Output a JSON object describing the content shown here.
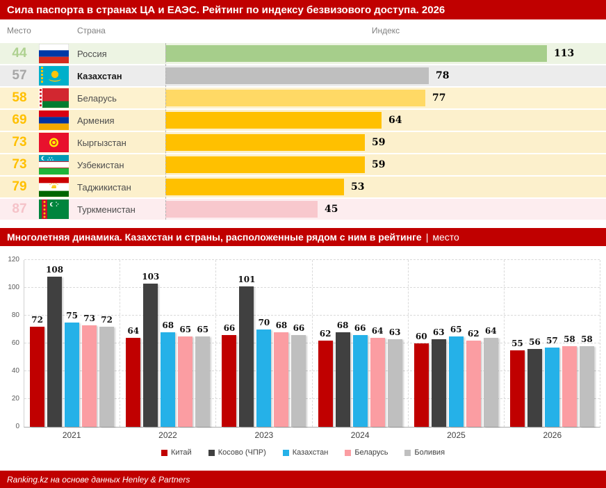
{
  "header": {
    "title": "Сила паспорта в странах ЦА и ЕАЭС. Рейтинг по индексу безвизового доступа. 2026"
  },
  "columns": {
    "rank": "Место",
    "country": "Страна",
    "index": "Индекс"
  },
  "ranking": {
    "max_value": 113,
    "rows": [
      {
        "rank": "44",
        "country": "Россия",
        "value": 113,
        "flag": "russia",
        "theme": "green",
        "bold": false
      },
      {
        "rank": "57",
        "country": "Казахстан",
        "value": 78,
        "flag": "kazakhstan",
        "theme": "gray",
        "bold": true
      },
      {
        "rank": "58",
        "country": "Беларусь",
        "value": 77,
        "flag": "belarus",
        "theme": "lightgold",
        "bold": false
      },
      {
        "rank": "69",
        "country": "Армения",
        "value": 64,
        "flag": "armenia",
        "theme": "gold",
        "bold": false
      },
      {
        "rank": "73",
        "country": "Кыргызстан",
        "value": 59,
        "flag": "kyrgyzstan",
        "theme": "gold",
        "bold": false
      },
      {
        "rank": "73",
        "country": "Узбекистан",
        "value": 59,
        "flag": "uzbekistan",
        "theme": "gold",
        "bold": false
      },
      {
        "rank": "79",
        "country": "Таджикистан",
        "value": 53,
        "flag": "tajikistan",
        "theme": "gold",
        "bold": false
      },
      {
        "rank": "87",
        "country": "Туркменистан",
        "value": 45,
        "flag": "turkmenistan",
        "theme": "pink",
        "bold": false
      }
    ],
    "theme_colors": {
      "green": {
        "rank": "#aed190",
        "bar": "#a6ce8b",
        "bg": "#edf4e3"
      },
      "gray": {
        "rank": "#a6a6a6",
        "bar": "#bfbfbf",
        "bg": "#ececec"
      },
      "lightgold": {
        "rank": "#ffc000",
        "bar": "#ffd965",
        "bg": "#fdf2cf"
      },
      "gold": {
        "rank": "#ffc000",
        "bar": "#ffc000",
        "bg": "#fcf0cc"
      },
      "pink": {
        "rank": "#f5c2c8",
        "bar": "#f8c8cd",
        "bg": "#fdedef"
      }
    }
  },
  "subtitle": {
    "bold": "Многолетняя динамика. Казахстан и страны, расположенные рядом с ним в рейтинге",
    "separator": "|",
    "light": "место"
  },
  "chart_data": [
    {
      "type": "bar",
      "orientation": "horizontal",
      "title": "Сила паспорта в странах ЦА и ЕАЭС. Рейтинг по индексу безвизового доступа. 2026",
      "categories": [
        "Россия",
        "Казахстан",
        "Беларусь",
        "Армения",
        "Кыргызстан",
        "Узбекистан",
        "Таджикистан",
        "Туркменистан"
      ],
      "ranks": [
        44,
        57,
        58,
        69,
        73,
        73,
        79,
        87
      ],
      "values": [
        113,
        78,
        77,
        64,
        59,
        59,
        53,
        45
      ],
      "xlabel": "Индекс",
      "xlim": [
        0,
        113
      ],
      "grid": false,
      "legend_position": "none"
    },
    {
      "type": "bar",
      "title": "Многолетняя динамика. Казахстан и страны, расположенные рядом с ним в рейтинге | место",
      "categories": [
        "2021",
        "2022",
        "2023",
        "2024",
        "2025",
        "2026"
      ],
      "series": [
        {
          "key": "china",
          "name": "Китай",
          "color": "#c00000",
          "values": [
            72,
            64,
            66,
            62,
            60,
            55
          ]
        },
        {
          "key": "kosovo",
          "name": "Косово (ЧПР)",
          "color": "#404040",
          "values": [
            108,
            103,
            101,
            68,
            63,
            56
          ]
        },
        {
          "key": "kazakhstan",
          "name": "Казахстан",
          "color": "#25b1e8",
          "values": [
            75,
            68,
            70,
            66,
            65,
            57
          ]
        },
        {
          "key": "belarus",
          "name": "Беларусь",
          "color": "#fb9da2",
          "values": [
            73,
            65,
            68,
            64,
            62,
            58
          ]
        },
        {
          "key": "bolivia",
          "name": "Боливия",
          "color": "#bfbfbf",
          "values": [
            72,
            65,
            66,
            63,
            64,
            58
          ]
        }
      ],
      "ylim": [
        0,
        120
      ],
      "ytick_step": 20,
      "grid": true,
      "legend_position": "bottom"
    }
  ],
  "footer": {
    "source": "Ranking.kz на основе данных Henley & Partners"
  },
  "colors": {
    "brand_red": "#c00000"
  }
}
